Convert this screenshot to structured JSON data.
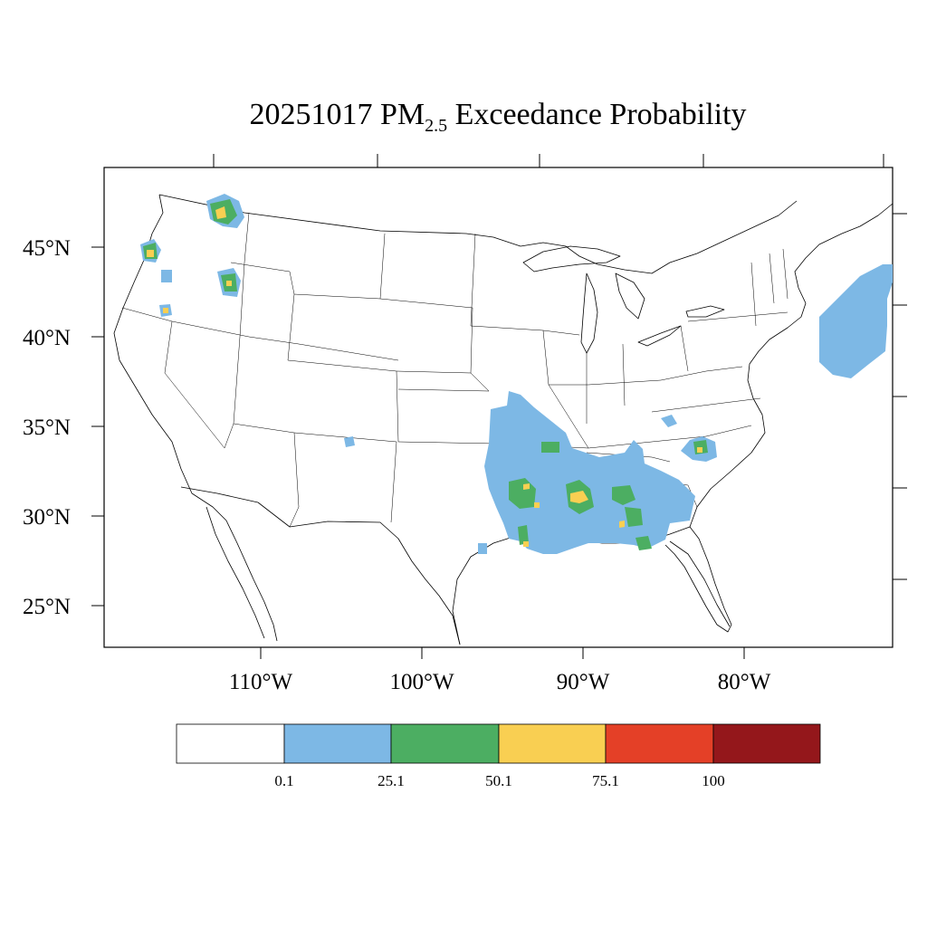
{
  "title": {
    "prefix": "20251017 PM",
    "subscript": "2.5",
    "suffix": " Exceedance Probability"
  },
  "axes": {
    "x_ticks": [
      "110°W",
      "100°W",
      "90°W",
      "80°W"
    ],
    "y_ticks": [
      "45°N",
      "40°N",
      "35°N",
      "30°N",
      "25°N"
    ]
  },
  "colorbar": {
    "colors": [
      "#ffffff",
      "#7db8e5",
      "#4cae62",
      "#f9cf52",
      "#e44027",
      "#94171b"
    ],
    "labels": [
      "0.1",
      "25.1",
      "50.1",
      "75.1",
      "100"
    ]
  }
}
